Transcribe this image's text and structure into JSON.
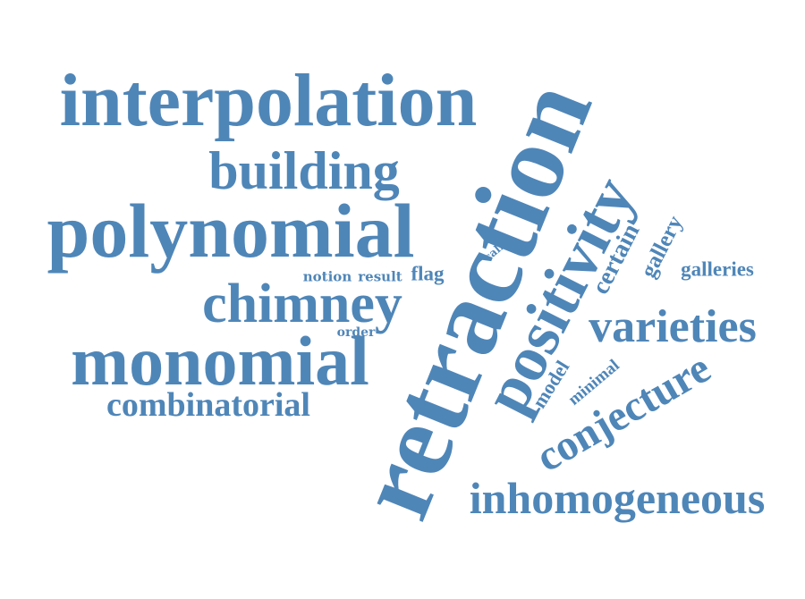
{
  "cloud": {
    "color": "#4f86b8",
    "words": [
      {
        "text": "interpolation"
      },
      {
        "text": "building"
      },
      {
        "text": "polynomial"
      },
      {
        "text": "chimney"
      },
      {
        "text": "monomial"
      },
      {
        "text": "combinatorial"
      },
      {
        "text": "notion"
      },
      {
        "text": "result"
      },
      {
        "text": "flag"
      },
      {
        "text": "order"
      },
      {
        "text": "call"
      },
      {
        "text": "retraction"
      },
      {
        "text": "positivity"
      },
      {
        "text": "certain"
      },
      {
        "text": "gallery"
      },
      {
        "text": "galleries"
      },
      {
        "text": "varieties"
      },
      {
        "text": "model"
      },
      {
        "text": "minimal"
      },
      {
        "text": "conjecture"
      },
      {
        "text": "inhomogeneous"
      }
    ]
  }
}
